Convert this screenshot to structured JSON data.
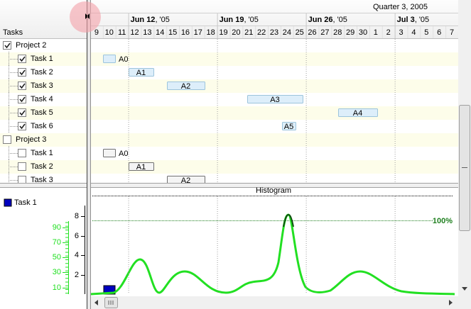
{
  "header": {
    "quarter": "Quarter 3, 2005",
    "weeks": [
      {
        "day": "Jun 12",
        "year": ", '05"
      },
      {
        "day": "Jun 19",
        "year": ", '05"
      },
      {
        "day": "Jun 26",
        "year": ", '05"
      },
      {
        "day": "Jul 3",
        "year": ", '05"
      }
    ],
    "days": [
      9,
      10,
      11,
      12,
      13,
      14,
      15,
      16,
      17,
      18,
      19,
      20,
      21,
      22,
      23,
      24,
      25,
      26,
      27,
      28,
      29,
      30,
      1,
      2,
      3,
      4,
      5,
      6,
      7
    ]
  },
  "tree": {
    "column": "Tasks",
    "rows": [
      {
        "label": "Project 2",
        "checked": true,
        "level": 0,
        "bar": null
      },
      {
        "label": "Task 1",
        "checked": true,
        "level": 1,
        "bar": "A0"
      },
      {
        "label": "Task 2",
        "checked": true,
        "level": 1,
        "bar": "A1"
      },
      {
        "label": "Task 3",
        "checked": true,
        "level": 1,
        "bar": "A2"
      },
      {
        "label": "Task 4",
        "checked": true,
        "level": 1,
        "bar": "A3"
      },
      {
        "label": "Task 5",
        "checked": true,
        "level": 1,
        "bar": "A4"
      },
      {
        "label": "Task 6",
        "checked": true,
        "level": 1,
        "bar": "A5"
      },
      {
        "label": "Project 3",
        "checked": false,
        "level": 0,
        "bar": null
      },
      {
        "label": "Task 1",
        "checked": false,
        "level": 1,
        "bar": "A0"
      },
      {
        "label": "Task 2",
        "checked": false,
        "level": 1,
        "bar": "A1"
      },
      {
        "label": "Task 3",
        "checked": false,
        "level": 1,
        "bar": "A2"
      }
    ]
  },
  "histogram": {
    "title": "Histogram",
    "legend": "Task 1",
    "percent_label": "100%",
    "left_ticks": [
      8,
      6,
      4,
      2
    ],
    "percent_ticks": [
      90,
      70,
      50,
      30,
      10
    ]
  }
}
